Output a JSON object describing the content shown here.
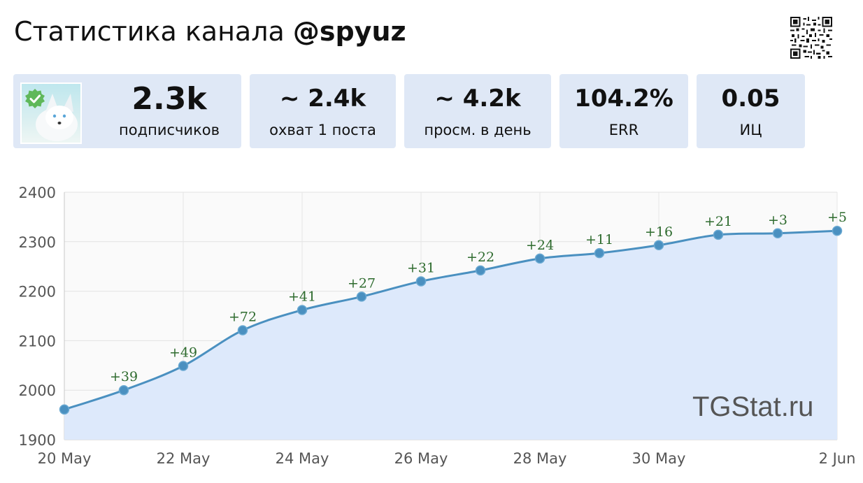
{
  "header": {
    "title_prefix": "Статистика канала ",
    "title_handle": "@spyuz"
  },
  "icons": {
    "qr": "qr-code-icon",
    "avatar": "channel-avatar",
    "verified": "verified-check-icon"
  },
  "stats": {
    "subscribers": {
      "value": "2.3k",
      "label": "подписчиков"
    },
    "reach": {
      "value": "~ 2.4k",
      "label": "охват 1 поста"
    },
    "views": {
      "value": "~ 4.2k",
      "label": "просм. в день"
    },
    "err": {
      "value": "104.2%",
      "label": "ERR"
    },
    "ic": {
      "value": "0.05",
      "label": "ИЦ"
    }
  },
  "watermark": "TGStat.ru",
  "colors": {
    "card_bg": "#dfe8f6",
    "line": "#4a90c0",
    "area": "#dde9fb",
    "delta_text": "#2e6b2e",
    "verified": "#5fb85a"
  },
  "chart_data": {
    "type": "area",
    "x": [
      "20 May",
      "21 May",
      "22 May",
      "23 May",
      "24 May",
      "25 May",
      "26 May",
      "27 May",
      "28 May",
      "29 May",
      "30 May",
      "31 May",
      "1 Jun",
      "2 Jun"
    ],
    "values": [
      1961,
      2000,
      2049,
      2121,
      2162,
      2189,
      2220,
      2242,
      2266,
      2277,
      2293,
      2314,
      2317,
      2322
    ],
    "point_labels": [
      "",
      "+39",
      "+49",
      "+72",
      "+41",
      "+27",
      "+31",
      "+22",
      "+24",
      "+11",
      "+16",
      "+21",
      "+3",
      "+5"
    ],
    "x_tick_labels": [
      "20 May",
      "22 May",
      "24 May",
      "26 May",
      "28 May",
      "30 May",
      "2 Jun"
    ],
    "x_tick_index": [
      0,
      2,
      4,
      6,
      8,
      10,
      13
    ],
    "y_ticks": [
      1900,
      2000,
      2100,
      2200,
      2300,
      2400
    ],
    "ylim": [
      1900,
      2400
    ],
    "grid": true,
    "title": "",
    "xlabel": "",
    "ylabel": ""
  }
}
